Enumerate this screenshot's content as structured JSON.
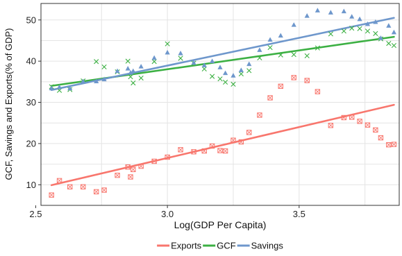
{
  "chart_data": {
    "type": "scatter",
    "xlabel": "Log(GDP Per Capita)",
    "ylabel": "GCF, Savings and Exports(% of GDP)",
    "xlim": [
      2.52,
      3.88
    ],
    "ylim": [
      5,
      54
    ],
    "xticks": [
      2.5,
      3.0,
      3.5
    ],
    "xtick_labels": [
      "2.5",
      "3.0",
      "3.5"
    ],
    "yticks": [
      10,
      20,
      30,
      40,
      50
    ],
    "ytick_labels": [
      "10",
      "20",
      "30",
      "40",
      "50"
    ],
    "grid": true,
    "legend_position": "bottom",
    "legend": [
      "Exports",
      "GCF",
      "Savings"
    ],
    "series": [
      {
        "name": "Exports",
        "color": "#F8766D",
        "marker": "square-x",
        "points": [
          [
            2.56,
            7.5
          ],
          [
            2.59,
            11.0
          ],
          [
            2.63,
            9.5
          ],
          [
            2.68,
            9.5
          ],
          [
            2.73,
            8.3
          ],
          [
            2.76,
            8.7
          ],
          [
            2.81,
            12.3
          ],
          [
            2.85,
            14.3
          ],
          [
            2.87,
            13.7
          ],
          [
            2.86,
            11.9
          ],
          [
            2.9,
            14.5
          ],
          [
            2.95,
            15.7
          ],
          [
            3.0,
            16.7
          ],
          [
            3.05,
            18.5
          ],
          [
            3.1,
            18.0
          ],
          [
            3.14,
            18.2
          ],
          [
            3.17,
            19.4
          ],
          [
            3.2,
            18.3
          ],
          [
            3.22,
            18.2
          ],
          [
            3.25,
            20.8
          ],
          [
            3.28,
            20.4
          ],
          [
            3.31,
            22.7
          ],
          [
            3.35,
            26.9
          ],
          [
            3.39,
            31.1
          ],
          [
            3.43,
            33.9
          ],
          [
            3.48,
            36.0
          ],
          [
            3.53,
            35.3
          ],
          [
            3.57,
            32.6
          ],
          [
            3.62,
            24.4
          ],
          [
            3.67,
            26.3
          ],
          [
            3.7,
            26.4
          ],
          [
            3.73,
            25.4
          ],
          [
            3.76,
            24.5
          ],
          [
            3.79,
            23.3
          ],
          [
            3.81,
            21.4
          ],
          [
            3.84,
            19.7
          ],
          [
            3.86,
            19.8
          ]
        ],
        "fit": [
          [
            2.56,
            9.9
          ],
          [
            3.86,
            29.4
          ]
        ]
      },
      {
        "name": "GCF",
        "color": "#3CB043",
        "marker": "x",
        "points": [
          [
            2.56,
            33.8
          ],
          [
            2.59,
            32.9
          ],
          [
            2.63,
            33.1
          ],
          [
            2.68,
            35.2
          ],
          [
            2.73,
            39.9
          ],
          [
            2.76,
            38.6
          ],
          [
            2.81,
            37.4
          ],
          [
            2.85,
            40.0
          ],
          [
            2.87,
            34.7
          ],
          [
            2.86,
            36.2
          ],
          [
            2.9,
            35.9
          ],
          [
            2.95,
            39.9
          ],
          [
            3.0,
            44.2
          ],
          [
            3.05,
            40.7
          ],
          [
            3.1,
            39.5
          ],
          [
            3.14,
            38.1
          ],
          [
            3.17,
            36.3
          ],
          [
            3.2,
            35.7
          ],
          [
            3.22,
            34.9
          ],
          [
            3.25,
            34.4
          ],
          [
            3.28,
            36.9
          ],
          [
            3.31,
            37.7
          ],
          [
            3.35,
            40.8
          ],
          [
            3.39,
            43.3
          ],
          [
            3.43,
            41.5
          ],
          [
            3.48,
            41.6
          ],
          [
            3.53,
            41.3
          ],
          [
            3.57,
            43.2
          ],
          [
            3.62,
            46.6
          ],
          [
            3.67,
            47.3
          ],
          [
            3.7,
            48.0
          ],
          [
            3.73,
            47.9
          ],
          [
            3.76,
            47.3
          ],
          [
            3.79,
            46.7
          ],
          [
            3.81,
            45.4
          ],
          [
            3.84,
            44.3
          ],
          [
            3.86,
            43.8
          ]
        ],
        "fit": [
          [
            2.56,
            34.0
          ],
          [
            3.86,
            45.9
          ]
        ]
      },
      {
        "name": "Savings",
        "color": "#6E97CC",
        "marker": "triangle",
        "points": [
          [
            2.56,
            33.4
          ],
          [
            2.59,
            33.7
          ],
          [
            2.63,
            33.4
          ],
          [
            2.68,
            35.1
          ],
          [
            2.73,
            35.1
          ],
          [
            2.76,
            35.6
          ],
          [
            2.81,
            37.6
          ],
          [
            2.85,
            38.2
          ],
          [
            2.87,
            37.6
          ],
          [
            2.86,
            37.2
          ],
          [
            2.9,
            38.7
          ],
          [
            2.95,
            40.8
          ],
          [
            3.0,
            42.1
          ],
          [
            3.05,
            41.9
          ],
          [
            3.1,
            39.6
          ],
          [
            3.14,
            39.0
          ],
          [
            3.17,
            40.0
          ],
          [
            3.2,
            38.5
          ],
          [
            3.22,
            37.1
          ],
          [
            3.25,
            36.5
          ],
          [
            3.28,
            37.8
          ],
          [
            3.31,
            39.3
          ],
          [
            3.35,
            42.7
          ],
          [
            3.39,
            45.2
          ],
          [
            3.43,
            46.2
          ],
          [
            3.48,
            48.8
          ],
          [
            3.53,
            51.0
          ],
          [
            3.57,
            52.3
          ],
          [
            3.62,
            51.8
          ],
          [
            3.67,
            52.1
          ],
          [
            3.7,
            50.8
          ],
          [
            3.73,
            50.2
          ],
          [
            3.76,
            49.0
          ],
          [
            3.79,
            49.5
          ],
          [
            3.81,
            45.6
          ],
          [
            3.84,
            48.6
          ],
          [
            3.86,
            47.0
          ]
        ],
        "fit": [
          [
            2.56,
            33.0
          ],
          [
            3.86,
            50.5
          ]
        ]
      }
    ]
  }
}
